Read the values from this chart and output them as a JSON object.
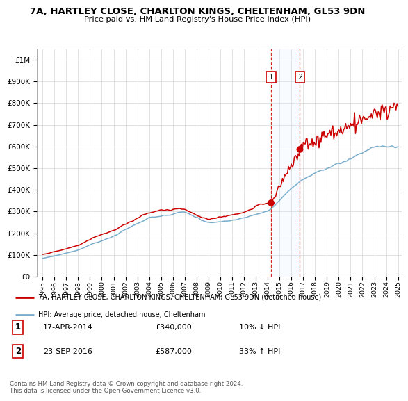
{
  "title": "7A, HARTLEY CLOSE, CHARLTON KINGS, CHELTENHAM, GL53 9DN",
  "subtitle": "Price paid vs. HM Land Registry's House Price Index (HPI)",
  "legend_line1": "7A, HARTLEY CLOSE, CHARLTON KINGS, CHELTENHAM, GL53 9DN (detached house)",
  "legend_line2": "HPI: Average price, detached house, Cheltenham",
  "transaction1_date": "17-APR-2014",
  "transaction1_price": "£340,000",
  "transaction1_hpi": "10% ↓ HPI",
  "transaction1_year": 2014.29,
  "transaction2_date": "23-SEP-2016",
  "transaction2_price": "£587,000",
  "transaction2_hpi": "33% ↑ HPI",
  "transaction2_year": 2016.72,
  "t1_price_val": 340000,
  "t2_price_val": 587000,
  "footnote": "Contains HM Land Registry data © Crown copyright and database right 2024.\nThis data is licensed under the Open Government Licence v3.0.",
  "red_color": "#cc0000",
  "blue_color": "#7aadcc",
  "span_color": "#ddeeff",
  "background_color": "#ffffff",
  "grid_color": "#cccccc",
  "ylim_max": 1050000,
  "xlim_start": 1994.5,
  "xlim_end": 2025.3
}
